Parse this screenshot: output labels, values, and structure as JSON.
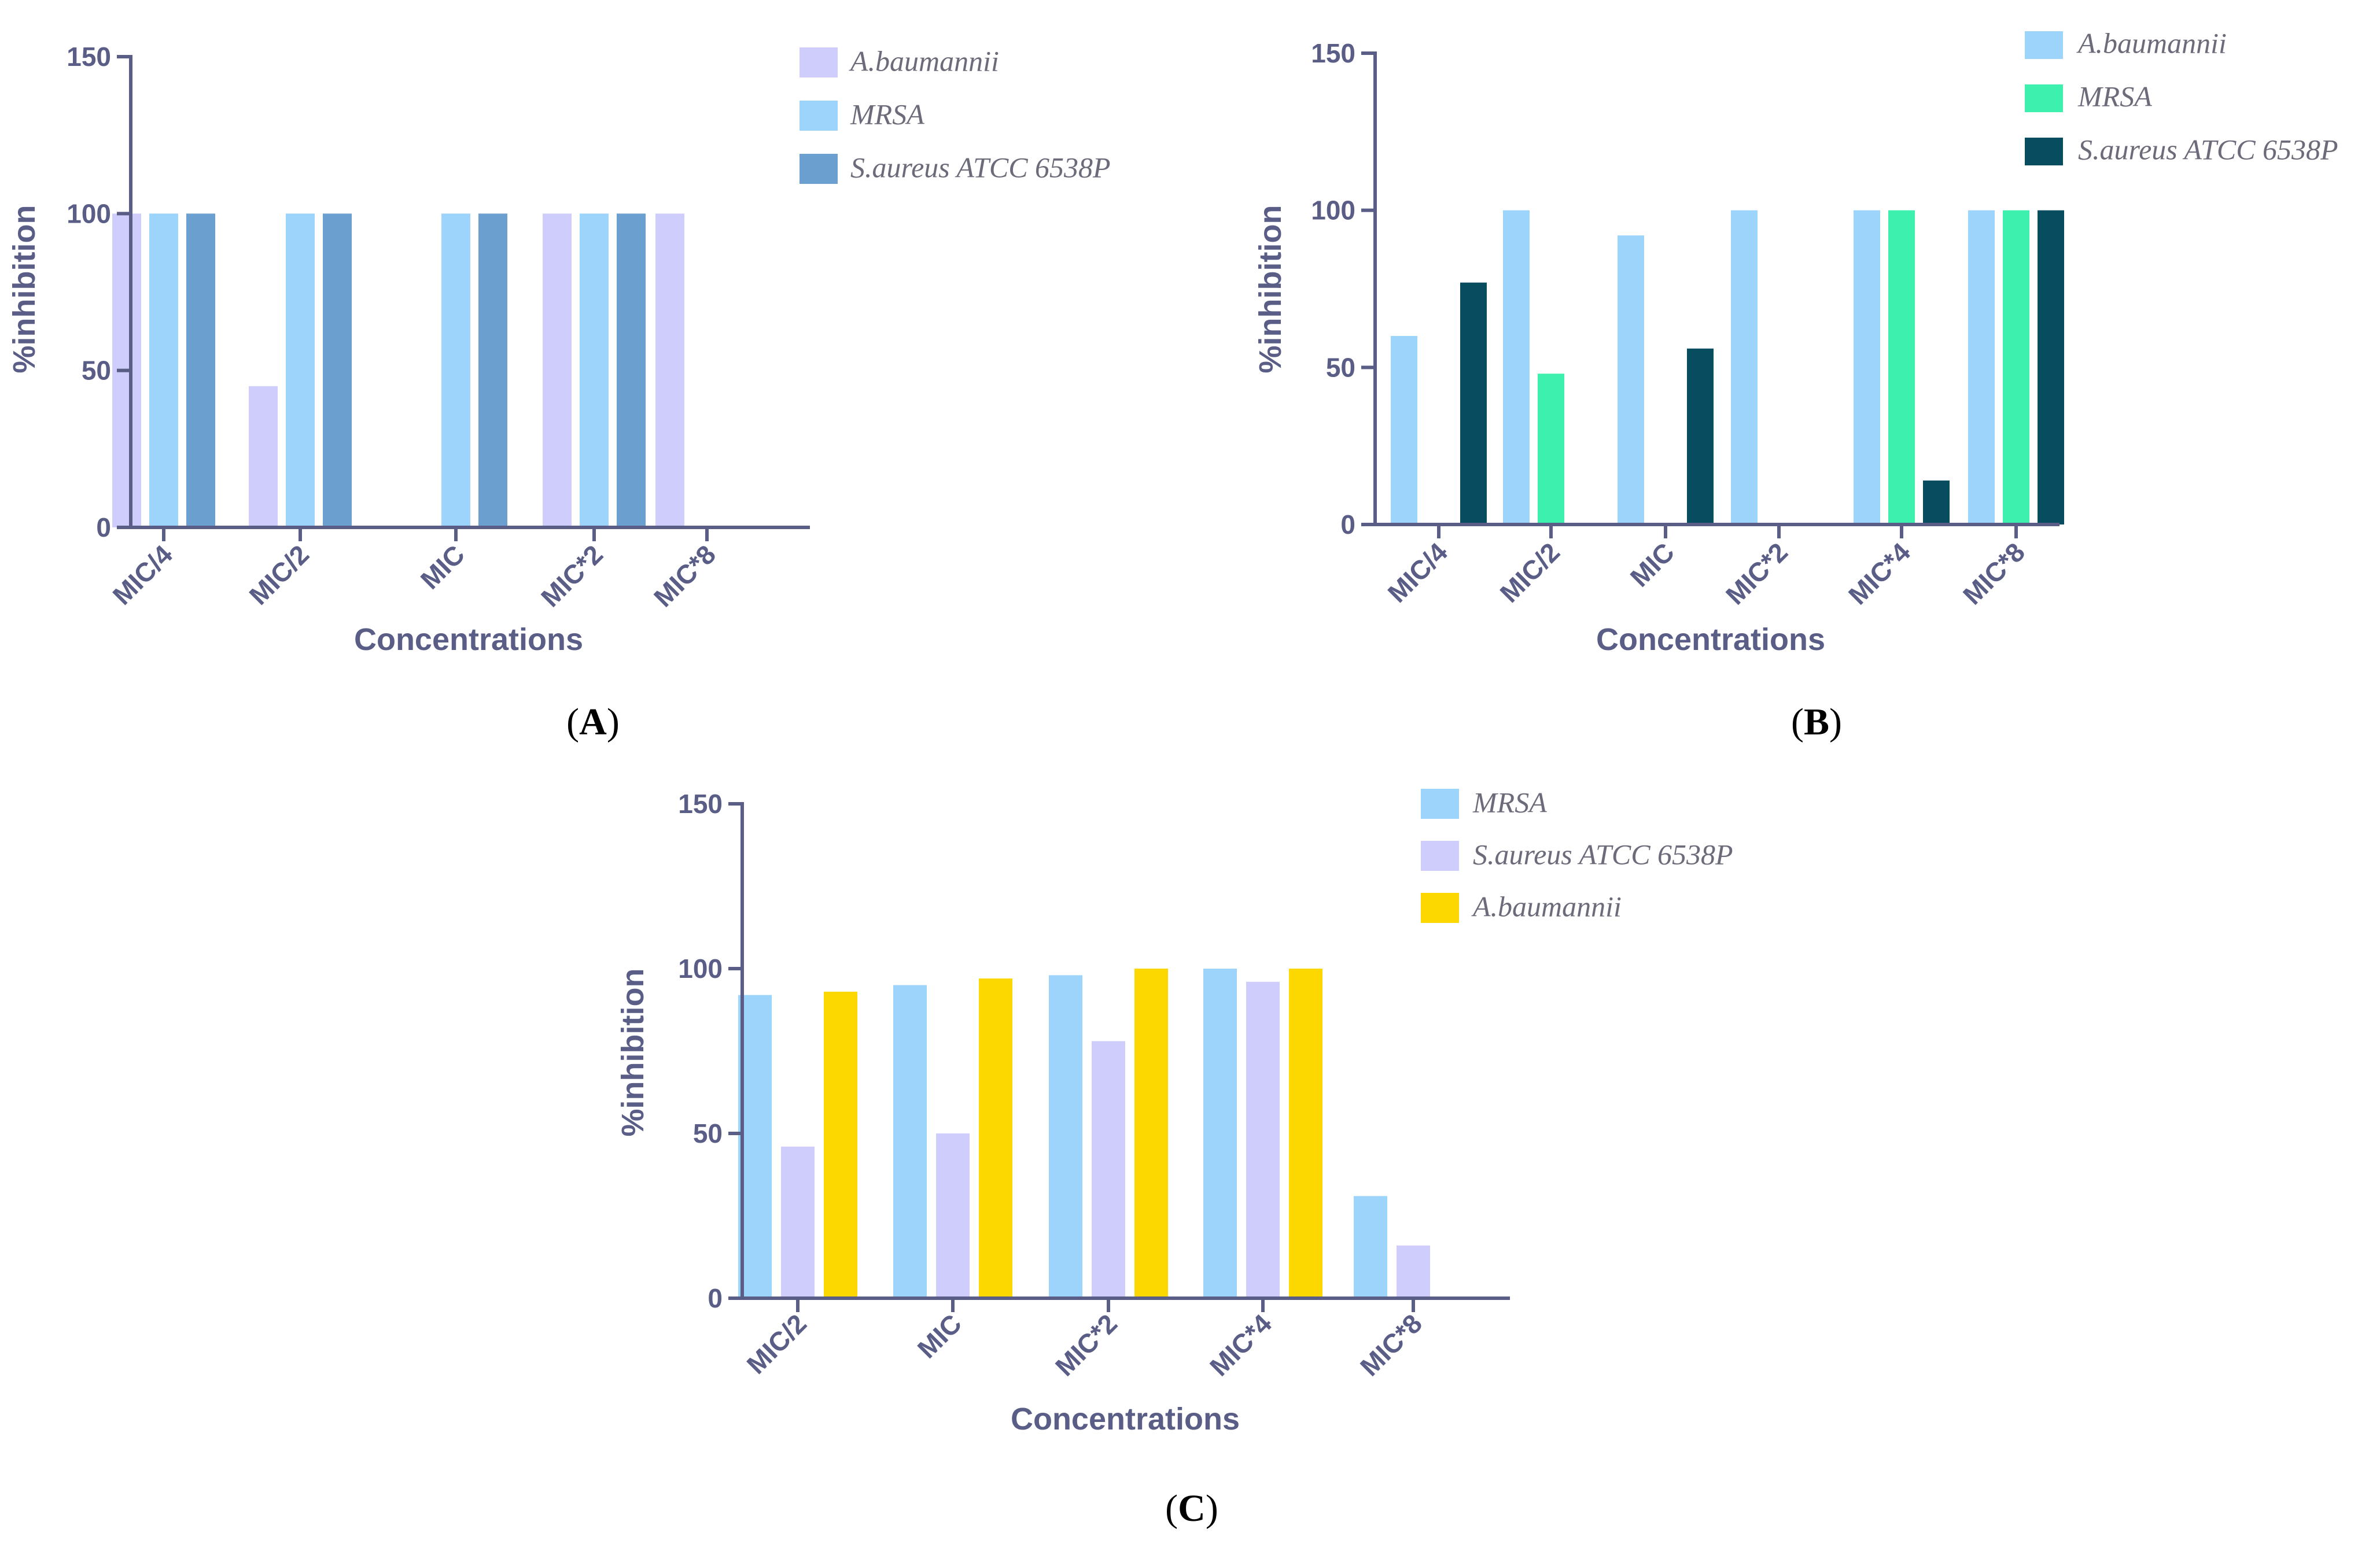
{
  "colors": {
    "lavender": "#cfcdfb",
    "light_blue": "#9dd4fb",
    "steel_blue": "#6a9fcf",
    "mint": "#3ef0ad",
    "dark_teal": "#074c5f",
    "yellow": "#fdd800",
    "axis": "#5a5d86"
  },
  "chart_data": [
    {
      "panel": "A",
      "type": "bar",
      "ylabel": "%inhibition",
      "xlabel": "Concentrations",
      "ylim": [
        0,
        150
      ],
      "yticks": [
        0,
        50,
        100,
        150
      ],
      "categories": [
        "MIC/4",
        "MIC/2",
        "MIC",
        "MIC*2",
        "MIC*8"
      ],
      "legend_position": "top-right",
      "series": [
        {
          "name": "A.baumannii",
          "color": "#cfcdfb",
          "values": [
            100,
            45,
            0,
            100,
            100
          ]
        },
        {
          "name": "MRSA",
          "color": "#9dd4fb",
          "values": [
            100,
            100,
            100,
            100,
            0
          ]
        },
        {
          "name": "S.aureus ATCC 6538P",
          "color": "#6a9fcf",
          "values": [
            100,
            100,
            100,
            100,
            0
          ]
        }
      ]
    },
    {
      "panel": "B",
      "type": "bar",
      "ylabel": "%inhibition",
      "xlabel": "Concentrations",
      "ylim": [
        0,
        150
      ],
      "yticks": [
        0,
        50,
        100,
        150
      ],
      "categories": [
        "MIC/4",
        "MIC/2",
        "MIC",
        "MIC*2",
        "MIC*4",
        "MIC*8"
      ],
      "legend_position": "top-right",
      "series": [
        {
          "name": "A.baumannii",
          "color": "#9dd4fb",
          "values": [
            60,
            100,
            92,
            100,
            100,
            100
          ]
        },
        {
          "name": "MRSA",
          "color": "#3ef0ad",
          "values": [
            0,
            48,
            0,
            0,
            100,
            100
          ]
        },
        {
          "name": "S.aureus ATCC 6538P",
          "color": "#074c5f",
          "values": [
            77,
            0,
            56,
            0,
            14,
            100
          ]
        }
      ]
    },
    {
      "panel": "C",
      "type": "bar",
      "ylabel": "%inhibition",
      "xlabel": "Concentrations",
      "ylim": [
        0,
        150
      ],
      "yticks": [
        0,
        50,
        100,
        150
      ],
      "categories": [
        "MIC/2",
        "MIC",
        "MIC*2",
        "MIC*4",
        "MIC*8"
      ],
      "legend_position": "top-right",
      "series": [
        {
          "name": "MRSA",
          "color": "#9dd4fb",
          "values": [
            92,
            95,
            98,
            100,
            31
          ]
        },
        {
          "name": "S.aureus ATCC 6538P",
          "color": "#cfcdfb",
          "values": [
            46,
            50,
            78,
            96,
            16
          ]
        },
        {
          "name": "A.baumannii",
          "color": "#fdd800",
          "values": [
            93,
            97,
            100,
            100,
            0
          ]
        }
      ]
    }
  ],
  "captions": [
    {
      "open": "(",
      "letter": "A",
      "close": ")"
    },
    {
      "open": "(",
      "letter": "B",
      "close": ")"
    },
    {
      "open": "(",
      "letter": "C",
      "close": ")"
    }
  ]
}
